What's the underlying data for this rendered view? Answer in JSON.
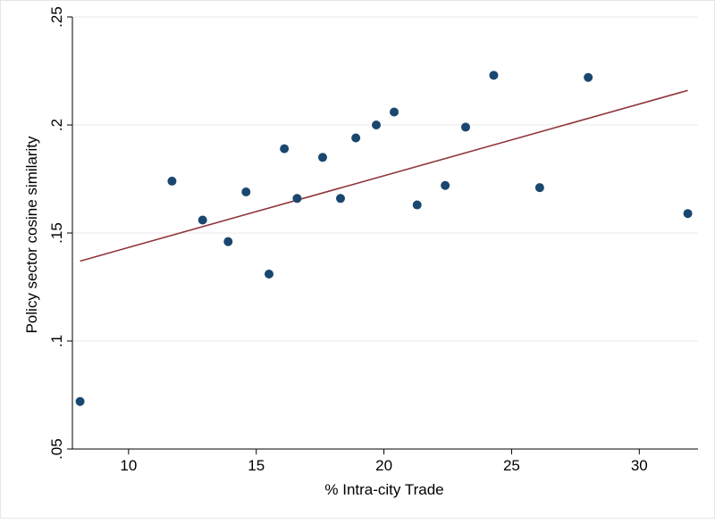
{
  "chart_data": {
    "type": "scatter",
    "xlabel": "% Intra-city Trade",
    "ylabel": "Policy sector cosine similarity",
    "xlim": [
      7.8,
      32.3
    ],
    "ylim": [
      0.05,
      0.25
    ],
    "xticks": [
      10,
      15,
      20,
      25,
      30
    ],
    "xtick_labels": [
      "10",
      "15",
      "20",
      "25",
      "30"
    ],
    "yticks": [
      0.05,
      0.1,
      0.15,
      0.2,
      0.25
    ],
    "ytick_labels": [
      ".05",
      ".1",
      ".15",
      ".2",
      ".25"
    ],
    "grid": true,
    "points": [
      {
        "x": 8.1,
        "y": 0.072
      },
      {
        "x": 11.7,
        "y": 0.174
      },
      {
        "x": 12.9,
        "y": 0.156
      },
      {
        "x": 13.9,
        "y": 0.146
      },
      {
        "x": 14.6,
        "y": 0.169
      },
      {
        "x": 15.5,
        "y": 0.131
      },
      {
        "x": 16.1,
        "y": 0.189
      },
      {
        "x": 16.6,
        "y": 0.166
      },
      {
        "x": 17.6,
        "y": 0.185
      },
      {
        "x": 18.3,
        "y": 0.166
      },
      {
        "x": 18.9,
        "y": 0.194
      },
      {
        "x": 19.7,
        "y": 0.2
      },
      {
        "x": 20.4,
        "y": 0.206
      },
      {
        "x": 21.3,
        "y": 0.163
      },
      {
        "x": 22.4,
        "y": 0.172
      },
      {
        "x": 23.2,
        "y": 0.199
      },
      {
        "x": 24.3,
        "y": 0.223
      },
      {
        "x": 26.1,
        "y": 0.171
      },
      {
        "x": 28.0,
        "y": 0.222
      },
      {
        "x": 31.9,
        "y": 0.159
      }
    ],
    "fit_line": {
      "x": [
        8.1,
        31.9
      ],
      "y": [
        0.137,
        0.216
      ]
    },
    "colors": {
      "marker": "#1a476f",
      "fit_line": "#90353b",
      "grid": "#eaeaea"
    }
  }
}
